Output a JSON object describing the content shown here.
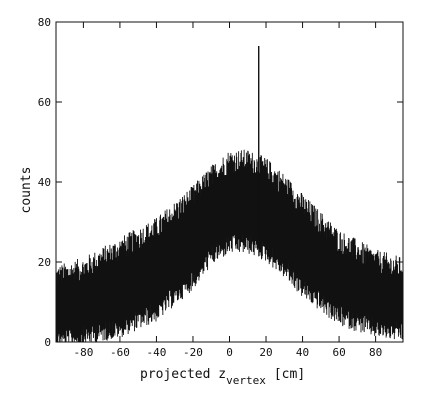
{
  "chart_data": {
    "type": "area",
    "xlabel": "projected z",
    "xlabel_sub": "vertex",
    "xlabel_unit": "[cm]",
    "ylabel": "counts",
    "xlim": [
      -95,
      95
    ],
    "ylim": [
      0,
      80
    ],
    "x_ticks": [
      "-80",
      "-60",
      "-40",
      "-20",
      "0",
      "20",
      "40",
      "60",
      "80"
    ],
    "y_ticks": [
      "0",
      "20",
      "40",
      "60",
      "80"
    ],
    "grid": false,
    "band_upper": {
      "x": [
        -95,
        -80,
        -60,
        -40,
        -20,
        -10,
        0,
        10,
        20,
        30,
        40,
        60,
        80,
        95
      ],
      "y": [
        15,
        17,
        22,
        27,
        35,
        40,
        44,
        44,
        42,
        38,
        33,
        24,
        19,
        17
      ]
    },
    "band_lower": {
      "x": [
        -95,
        -80,
        -60,
        -40,
        -20,
        -10,
        0,
        10,
        20,
        30,
        40,
        60,
        80,
        95
      ],
      "y": [
        3,
        4,
        6,
        10,
        18,
        24,
        27,
        27,
        25,
        21,
        16,
        9,
        6,
        5
      ]
    },
    "spike": {
      "x": 16,
      "y": 74
    }
  }
}
